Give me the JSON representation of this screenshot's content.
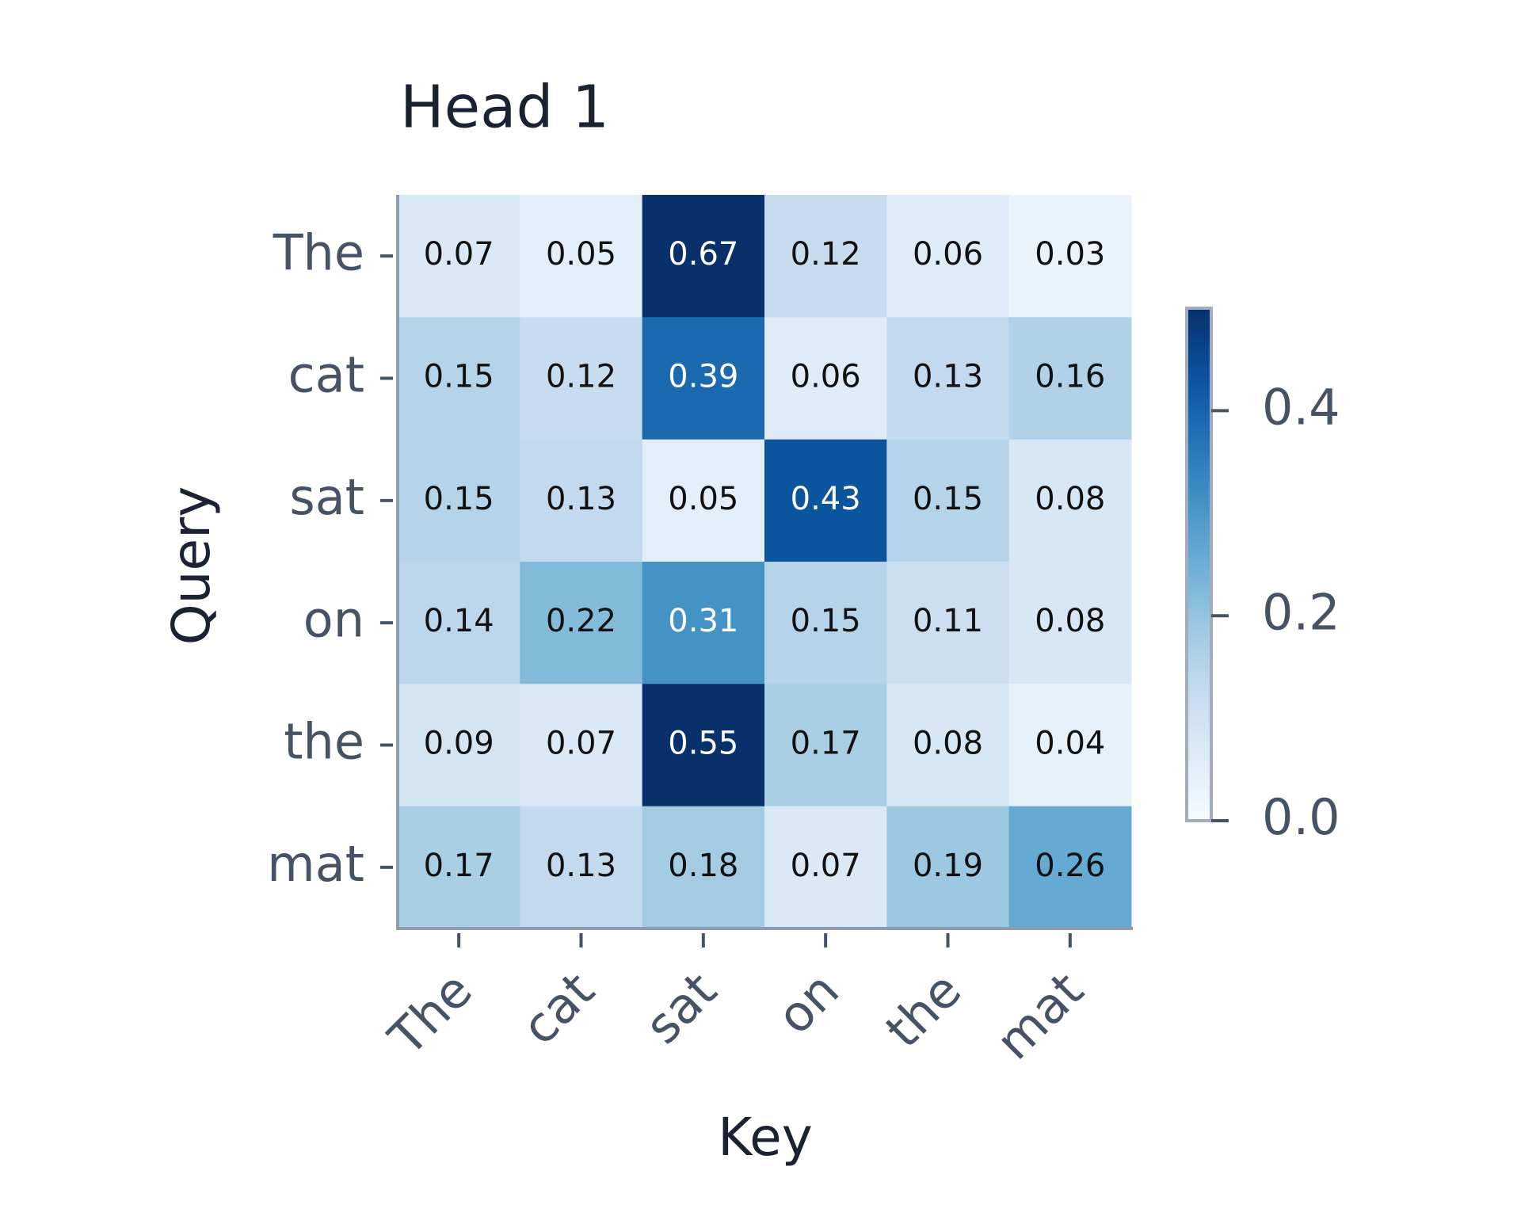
{
  "chart_data": {
    "type": "heatmap",
    "title": "Head 1",
    "x_label": "Key",
    "y_label": "Query",
    "x_categories": [
      "The",
      "cat",
      "sat",
      "on",
      "the",
      "mat"
    ],
    "y_categories": [
      "The",
      "cat",
      "sat",
      "on",
      "the",
      "mat"
    ],
    "values": [
      [
        0.07,
        0.05,
        0.67,
        0.12,
        0.06,
        0.03
      ],
      [
        0.15,
        0.12,
        0.39,
        0.06,
        0.13,
        0.16
      ],
      [
        0.15,
        0.13,
        0.05,
        0.43,
        0.15,
        0.08
      ],
      [
        0.14,
        0.22,
        0.31,
        0.15,
        0.11,
        0.08
      ],
      [
        0.09,
        0.07,
        0.55,
        0.17,
        0.08,
        0.04
      ],
      [
        0.17,
        0.13,
        0.18,
        0.07,
        0.19,
        0.26
      ]
    ],
    "colormap": "Blues",
    "clim": [
      0,
      0.5
    ],
    "cticks": [
      {
        "value": 0,
        "label": "0.0"
      },
      0.2,
      0.4
    ]
  }
}
